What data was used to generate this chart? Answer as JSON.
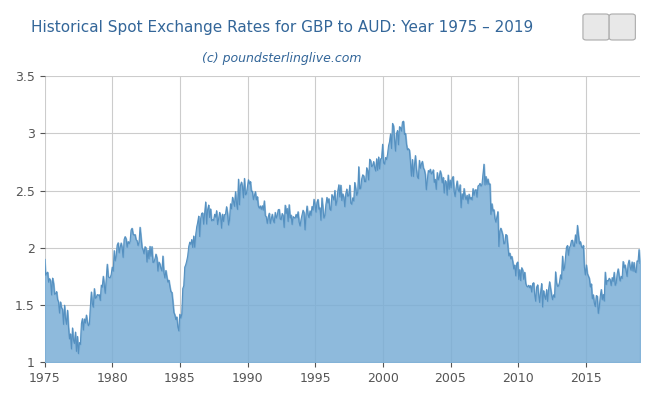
{
  "title": "Historical Spot Exchange Rates for GBP to AUD: Year 1975 – 2019",
  "subtitle": "(c) poundsterlinglive.com",
  "title_color": "#336699",
  "subtitle_color": "#336699",
  "fill_color": "#7aaed6",
  "line_color": "#5590c0",
  "background_color": "#ffffff",
  "plot_bg_color": "#ffffff",
  "grid_color": "#cccccc",
  "xlim": [
    1975,
    2019
  ],
  "ylim": [
    1.0,
    3.5
  ],
  "yticks": [
    1.0,
    1.5,
    2.0,
    2.5,
    3.0,
    3.5
  ],
  "xticks": [
    1975,
    1980,
    1985,
    1990,
    1995,
    2000,
    2005,
    2010,
    2015
  ],
  "tick_label_color": "#555555",
  "figsize": [
    6.55,
    4.0
  ],
  "dpi": 100
}
